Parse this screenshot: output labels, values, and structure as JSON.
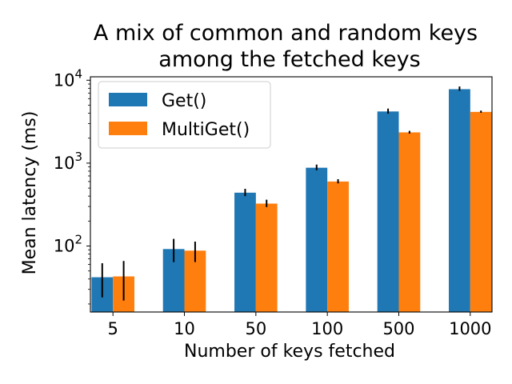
{
  "chart_data": {
    "type": "bar",
    "title_lines": [
      "A mix of common and random keys",
      "among the fetched keys"
    ],
    "xlabel": "Number of keys fetched",
    "ylabel": "Mean latency (ms)",
    "yscale": "log",
    "ylim": [
      16,
      11000
    ],
    "y_ticks": [
      {
        "value": 100,
        "base": "10",
        "exp": "2"
      },
      {
        "value": 1000,
        "base": "10",
        "exp": "3"
      },
      {
        "value": 10000,
        "base": "10",
        "exp": "4"
      }
    ],
    "categories": [
      "5",
      "10",
      "50",
      "100",
      "500",
      "1000"
    ],
    "series": [
      {
        "name": "Get()",
        "color": "#1f77b4",
        "values": [
          42,
          92,
          440,
          880,
          4200,
          7800
        ],
        "err_low": [
          24,
          64,
          400,
          820,
          3950,
          7450
        ],
        "err_high": [
          62,
          122,
          490,
          960,
          4550,
          8400
        ]
      },
      {
        "name": "MultiGet()",
        "color": "#ff7f0e",
        "values": [
          43,
          88,
          325,
          600,
          2350,
          4150
        ],
        "err_low": [
          22,
          64,
          295,
          570,
          2270,
          4050
        ],
        "err_high": [
          66,
          113,
          362,
          640,
          2450,
          4300
        ]
      }
    ],
    "legend": "top-left",
    "grid": false
  }
}
